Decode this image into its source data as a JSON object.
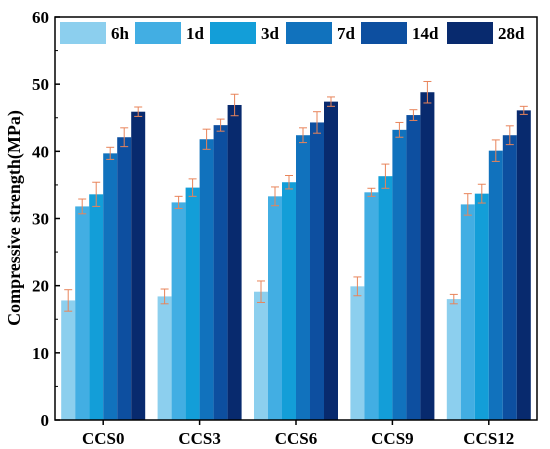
{
  "chart_data": {
    "type": "bar",
    "title": "",
    "xlabel": "",
    "ylabel": "Compressive strength(MPa)",
    "ylim": [
      0,
      60
    ],
    "yticks": [
      "0",
      "10",
      "20",
      "30",
      "40",
      "50",
      "60"
    ],
    "grid": false,
    "legend_position": "top",
    "categories": [
      "CCS0",
      "CCS3",
      "CCS6",
      "CCS9",
      "CCS12"
    ],
    "series": [
      {
        "name": "6h",
        "color": "#8ccfee",
        "values": [
          17.8,
          18.4,
          19.1,
          19.9,
          18.0
        ],
        "errors": [
          1.6,
          1.1,
          1.6,
          1.4,
          0.7
        ]
      },
      {
        "name": "1d",
        "color": "#42aee3",
        "values": [
          31.8,
          32.4,
          33.3,
          33.9,
          32.1
        ],
        "errors": [
          1.1,
          0.9,
          1.4,
          0.6,
          1.6
        ]
      },
      {
        "name": "3d",
        "color": "#139ed8",
        "values": [
          33.6,
          34.6,
          35.4,
          36.3,
          33.7
        ],
        "errors": [
          1.8,
          1.3,
          1.0,
          1.8,
          1.4
        ]
      },
      {
        "name": "7d",
        "color": "#1172bd",
        "values": [
          39.7,
          41.8,
          42.4,
          43.2,
          40.1
        ],
        "errors": [
          0.9,
          1.5,
          1.1,
          1.1,
          1.6
        ]
      },
      {
        "name": "14d",
        "color": "#0d4fa0",
        "values": [
          42.1,
          43.9,
          44.3,
          45.4,
          42.4
        ],
        "errors": [
          1.4,
          0.9,
          1.6,
          0.8,
          1.4
        ]
      },
      {
        "name": "28d",
        "color": "#082a6e",
        "values": [
          45.9,
          46.9,
          47.4,
          48.8,
          46.1
        ],
        "errors": [
          0.7,
          1.6,
          0.7,
          1.6,
          0.6
        ]
      }
    ],
    "error_bar_color": "#e8845a"
  }
}
